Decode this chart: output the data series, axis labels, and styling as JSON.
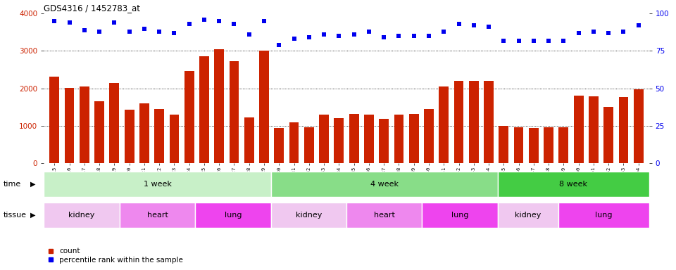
{
  "title": "GDS4316 / 1452783_at",
  "samples": [
    "GSM949115",
    "GSM949116",
    "GSM949117",
    "GSM949118",
    "GSM949119",
    "GSM949120",
    "GSM949121",
    "GSM949122",
    "GSM949123",
    "GSM949124",
    "GSM949125",
    "GSM949126",
    "GSM949127",
    "GSM949128",
    "GSM949129",
    "GSM949130",
    "GSM949131",
    "GSM949132",
    "GSM949133",
    "GSM949134",
    "GSM949135",
    "GSM949136",
    "GSM949137",
    "GSM949138",
    "GSM949139",
    "GSM949140",
    "GSM949141",
    "GSM949142",
    "GSM949143",
    "GSM949144",
    "GSM949145",
    "GSM949146",
    "GSM949147",
    "GSM949148",
    "GSM949149",
    "GSM949150",
    "GSM949151",
    "GSM949152",
    "GSM949153",
    "GSM949154"
  ],
  "counts": [
    2320,
    2020,
    2060,
    1650,
    2150,
    1430,
    1600,
    1450,
    1300,
    2460,
    2850,
    3050,
    2730,
    1230,
    3000,
    950,
    1100,
    960,
    1310,
    1200,
    1320,
    1310,
    1190,
    1310,
    1320,
    1450,
    2050,
    2200,
    2200,
    2200,
    1000,
    970,
    940,
    960,
    960,
    1800,
    1790,
    1510,
    1770,
    1970
  ],
  "percentile": [
    95,
    94,
    89,
    88,
    94,
    88,
    90,
    88,
    87,
    93,
    96,
    95,
    93,
    86,
    95,
    79,
    83,
    84,
    86,
    85,
    86,
    88,
    84,
    85,
    85,
    85,
    88,
    93,
    92,
    91,
    82,
    82,
    82,
    82,
    82,
    87,
    88,
    87,
    88,
    92
  ],
  "bar_color": "#cc2200",
  "dot_color": "#0000ee",
  "ylim_left": [
    0,
    4000
  ],
  "ylim_right": [
    0,
    100
  ],
  "yticks_left": [
    0,
    1000,
    2000,
    3000,
    4000
  ],
  "yticks_right": [
    0,
    25,
    50,
    75,
    100
  ],
  "bg_color": "#ffffff",
  "plot_bg": "#ffffff",
  "time_groups": [
    {
      "label": "1 week",
      "start": 0,
      "end": 15,
      "color": "#c8f0c8"
    },
    {
      "label": "4 week",
      "start": 15,
      "end": 30,
      "color": "#88dd88"
    },
    {
      "label": "8 week",
      "start": 30,
      "end": 40,
      "color": "#44cc44"
    }
  ],
  "tissue_groups": [
    {
      "label": "kidney",
      "start": 0,
      "end": 5,
      "color": "#f0c8f0"
    },
    {
      "label": "heart",
      "start": 5,
      "end": 10,
      "color": "#ee88ee"
    },
    {
      "label": "lung",
      "start": 10,
      "end": 15,
      "color": "#ee44ee"
    },
    {
      "label": "kidney",
      "start": 15,
      "end": 20,
      "color": "#f0c8f0"
    },
    {
      "label": "heart",
      "start": 20,
      "end": 25,
      "color": "#ee88ee"
    },
    {
      "label": "lung",
      "start": 25,
      "end": 30,
      "color": "#ee44ee"
    },
    {
      "label": "kidney",
      "start": 30,
      "end": 34,
      "color": "#f0c8f0"
    },
    {
      "label": "lung",
      "start": 34,
      "end": 40,
      "color": "#ee44ee"
    }
  ]
}
